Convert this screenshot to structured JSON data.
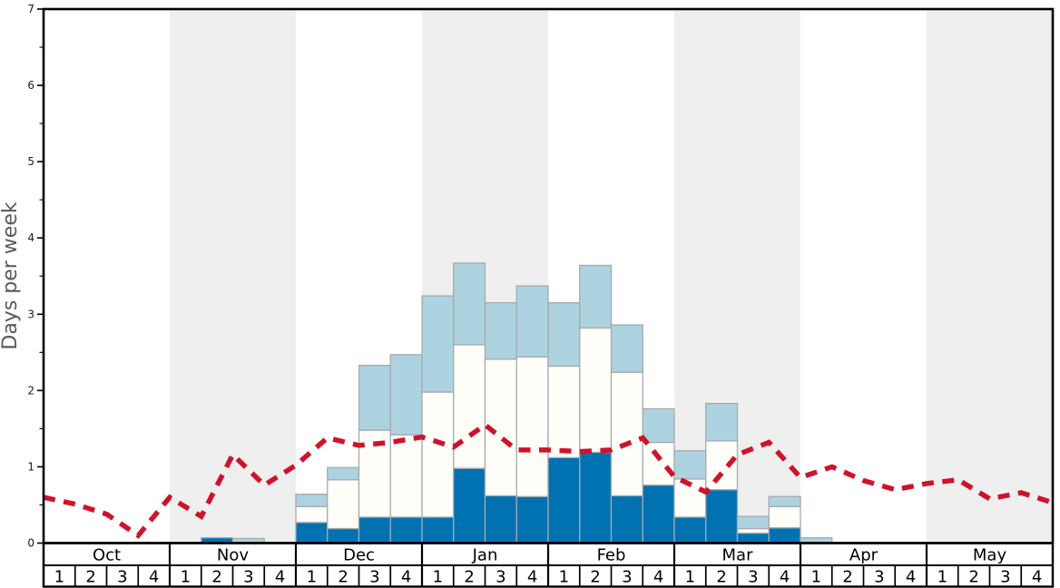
{
  "chart_data": {
    "type": "bar",
    "subtype": "stacked-bar-with-dashed-line-overlay",
    "title": "",
    "xlabel": "",
    "ylabel": "Days per week",
    "ylim": [
      0,
      7
    ],
    "y_major_ticks": [
      0,
      1,
      2,
      3,
      4,
      5,
      6,
      7
    ],
    "y_minor_tick_step": 0.5,
    "grid": "off",
    "legend": "none",
    "months": [
      "Oct",
      "Nov",
      "Dec",
      "Jan",
      "Feb",
      "Mar",
      "Apr",
      "May"
    ],
    "shaded_months": [
      "Nov",
      "Jan",
      "Mar",
      "May"
    ],
    "week_labels": [
      "1",
      "2",
      "3",
      "4"
    ],
    "categories": [
      "Oct 1",
      "Oct 2",
      "Oct 3",
      "Oct 4",
      "Nov 1",
      "Nov 2",
      "Nov 3",
      "Nov 4",
      "Dec 1",
      "Dec 2",
      "Dec 3",
      "Dec 4",
      "Jan 1",
      "Jan 2",
      "Jan 3",
      "Jan 4",
      "Feb 1",
      "Feb 2",
      "Feb 3",
      "Feb 4",
      "Mar 1",
      "Mar 2",
      "Mar 3",
      "Mar 4",
      "Apr 1",
      "Apr 2",
      "Apr 3",
      "Apr 4",
      "May 1",
      "May 2",
      "May 3",
      "May 4"
    ],
    "series": [
      {
        "name": "dark-blue-bottom-segment",
        "color": "#0072b2",
        "values": [
          0,
          0,
          0,
          0,
          0,
          0.07,
          0,
          0,
          0.27,
          0.19,
          0.34,
          0.34,
          0.34,
          0.98,
          0.62,
          0.61,
          1.12,
          1.19,
          0.62,
          0.76,
          0.34,
          0.7,
          0.13,
          0.2,
          0,
          0,
          0,
          0,
          0,
          0,
          0,
          0
        ]
      },
      {
        "name": "white-middle-segment",
        "color": "#fffef9",
        "values": [
          0,
          0,
          0,
          0,
          0,
          0,
          0,
          0,
          0.21,
          0.64,
          1.14,
          1.08,
          1.64,
          1.62,
          1.79,
          1.83,
          1.2,
          1.63,
          1.62,
          0.56,
          0.5,
          0.64,
          0.06,
          0.28,
          0,
          0,
          0,
          0,
          0,
          0,
          0,
          0
        ]
      },
      {
        "name": "light-blue-top-segment",
        "color": "#add3e0",
        "values": [
          0,
          0,
          0,
          0,
          0,
          0,
          0.06,
          0,
          0.16,
          0.16,
          0.85,
          1.05,
          1.26,
          1.07,
          0.74,
          0.93,
          0.83,
          0.82,
          0.62,
          0.44,
          0.37,
          0.49,
          0.16,
          0.13,
          0.07,
          0,
          0,
          0,
          0,
          0,
          0,
          0
        ]
      }
    ],
    "line_series": {
      "name": "red-dashed-trend-line",
      "color": "#d0122b",
      "style": "dashed",
      "x_positions": "week boundaries, 33 points spanning Oct start to May end",
      "values": [
        0.6,
        0.51,
        0.38,
        0.1,
        0.6,
        0.35,
        1.16,
        0.76,
        1.02,
        1.38,
        1.28,
        1.32,
        1.39,
        1.26,
        1.55,
        1.22,
        1.22,
        1.2,
        1.22,
        1.38,
        0.87,
        0.67,
        1.16,
        1.32,
        0.86,
        1.0,
        0.82,
        0.7,
        0.78,
        0.83,
        0.58,
        0.66,
        0.53
      ]
    },
    "colors": {
      "band": "#efefef",
      "bar_border": "#a6aaae",
      "frame": "#000000",
      "header_bg": "#ffffff",
      "ylabel_text": "#595959",
      "tick_text": "#1a1a1a"
    }
  }
}
